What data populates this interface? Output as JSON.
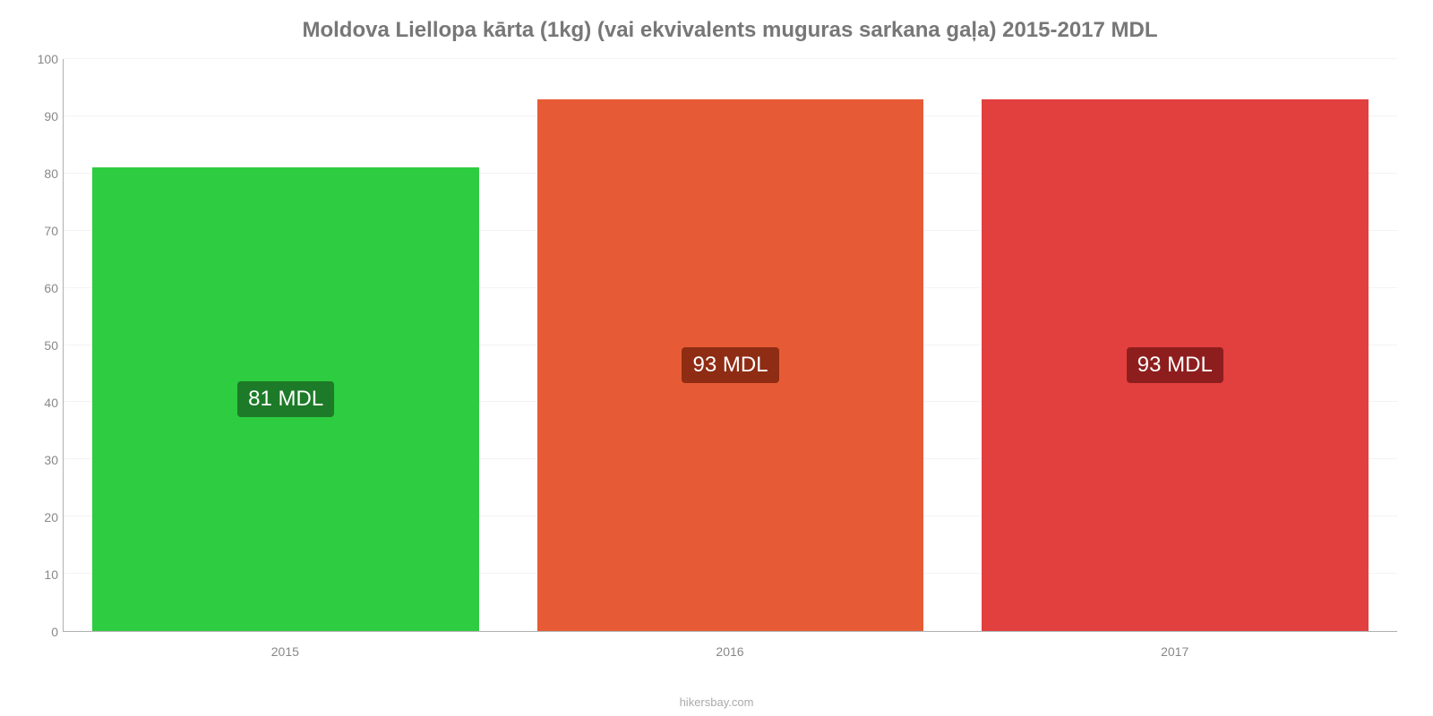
{
  "chart": {
    "type": "bar",
    "title": "Moldova Liellopa kārta (1kg) (vai ekvivalents muguras sarkana gaļa) 2015-2017 MDL",
    "title_color": "#777777",
    "title_fontsize": 24,
    "categories": [
      "2015",
      "2016",
      "2017"
    ],
    "values": [
      81,
      93,
      93
    ],
    "value_labels": [
      "81 MDL",
      "93 MDL",
      "93 MDL"
    ],
    "bar_colors": [
      "#2ecc40",
      "#e65b35",
      "#e23f3f"
    ],
    "label_bg_colors": [
      "#1d7a28",
      "#8f2c14",
      "#8e1e1e"
    ],
    "label_text_color": "#ffffff",
    "label_fontsize": 24,
    "ylim": [
      0,
      100
    ],
    "ytick_step": 10,
    "y_ticks": [
      0,
      10,
      20,
      30,
      40,
      50,
      60,
      70,
      80,
      90,
      100
    ],
    "axis_label_color": "#888888",
    "axis_label_fontsize": 14,
    "grid_color": "#f3f3f3",
    "axis_line_color": "#b0b0b0",
    "background_color": "#ffffff",
    "bar_width_ratio": 0.87,
    "source": "hikersbay.com",
    "source_color": "#aaaaaa",
    "source_fontsize": 13
  }
}
